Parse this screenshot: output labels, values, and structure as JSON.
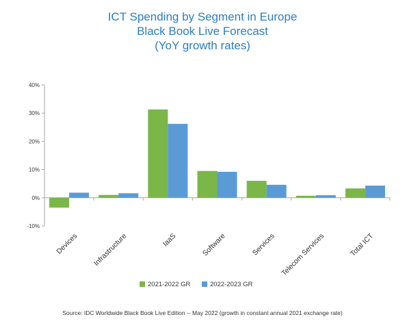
{
  "colors": {
    "series1": "#7ab648",
    "series2": "#5b9bd5",
    "title": "#2a7ec3",
    "axis": "#a6a6a6",
    "text": "#333333"
  },
  "chart_data": {
    "type": "bar",
    "title_lines": [
      "ICT Spending by Segment in Europe",
      "Black Book Live Forecast",
      "(YoY growth rates)"
    ],
    "categories": [
      "Devices",
      "Infrastructure",
      "IaaS",
      "Software",
      "Services",
      "Telecom Services",
      "Total ICT"
    ],
    "series": [
      {
        "name": "2021-2022 GR",
        "values": [
          -3.5,
          1.0,
          31.3,
          9.5,
          6.0,
          0.7,
          3.3
        ]
      },
      {
        "name": "2022-2023 GR",
        "values": [
          1.8,
          1.6,
          26.2,
          9.2,
          4.6,
          0.9,
          4.3
        ]
      }
    ],
    "ylim": [
      -10,
      40
    ],
    "yticks": [
      -10,
      0,
      10,
      20,
      30,
      40
    ],
    "ytick_labels": [
      "-10%",
      "0%",
      "10%",
      "20%",
      "30%",
      "40%"
    ],
    "grid": false,
    "legend_position": "bottom"
  },
  "source_text": "Source: IDC Worldwide Black Book Live Edition -- May 2022 (growth in constant annual 2021 exchange rate)"
}
